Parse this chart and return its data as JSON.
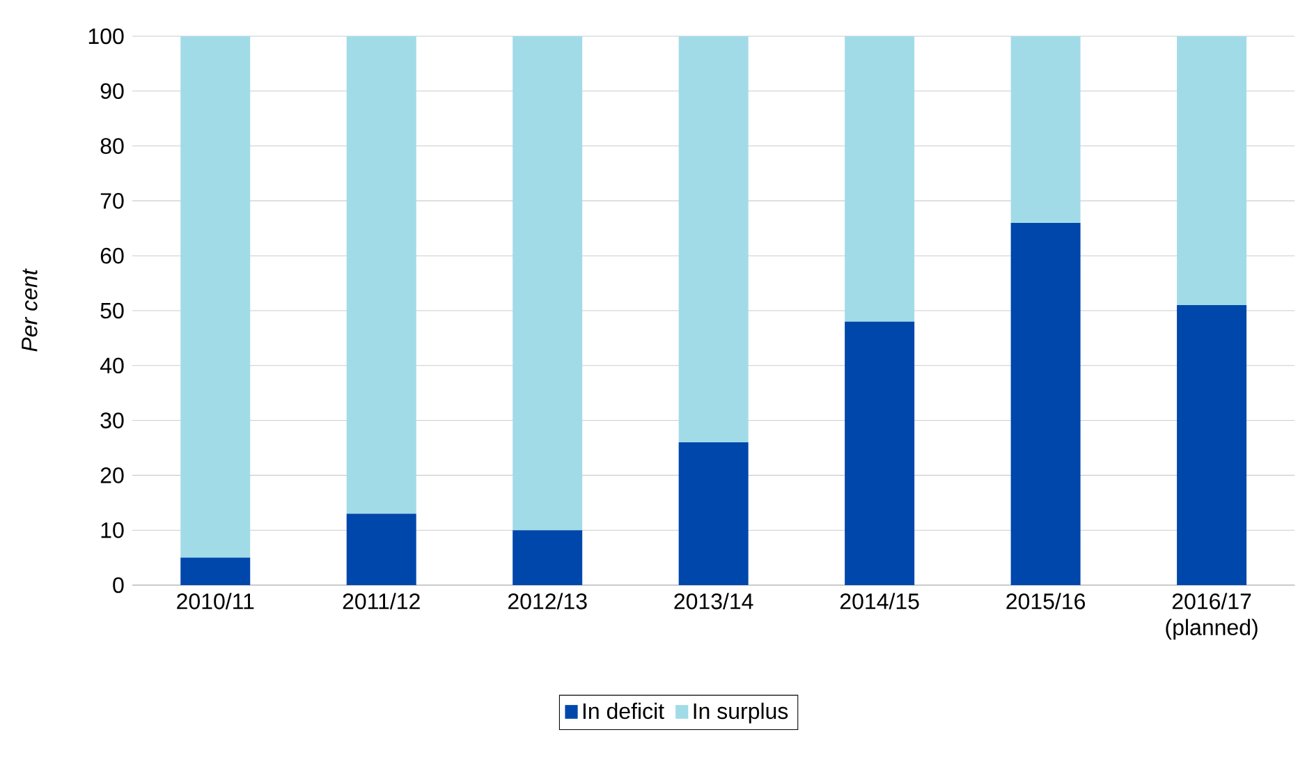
{
  "chart_data": {
    "type": "bar",
    "stacked": true,
    "ylabel": "Per cent",
    "categories": [
      "2010/11",
      "2011/12",
      "2012/13",
      "2013/14",
      "2014/15",
      "2015/16",
      "2016/17 (planned)"
    ],
    "series": [
      {
        "name": "In deficit",
        "color": "#0047ab",
        "values": [
          5,
          13,
          10,
          26,
          48,
          66,
          51
        ]
      },
      {
        "name": "In surplus",
        "color": "#a2dbe8",
        "values": [
          95,
          87,
          90,
          74,
          52,
          34,
          49
        ]
      }
    ],
    "ylim": [
      0,
      100
    ],
    "yticks": [
      0,
      10,
      20,
      30,
      40,
      50,
      60,
      70,
      80,
      90,
      100
    ],
    "grid": "y",
    "legend": "bottom"
  }
}
